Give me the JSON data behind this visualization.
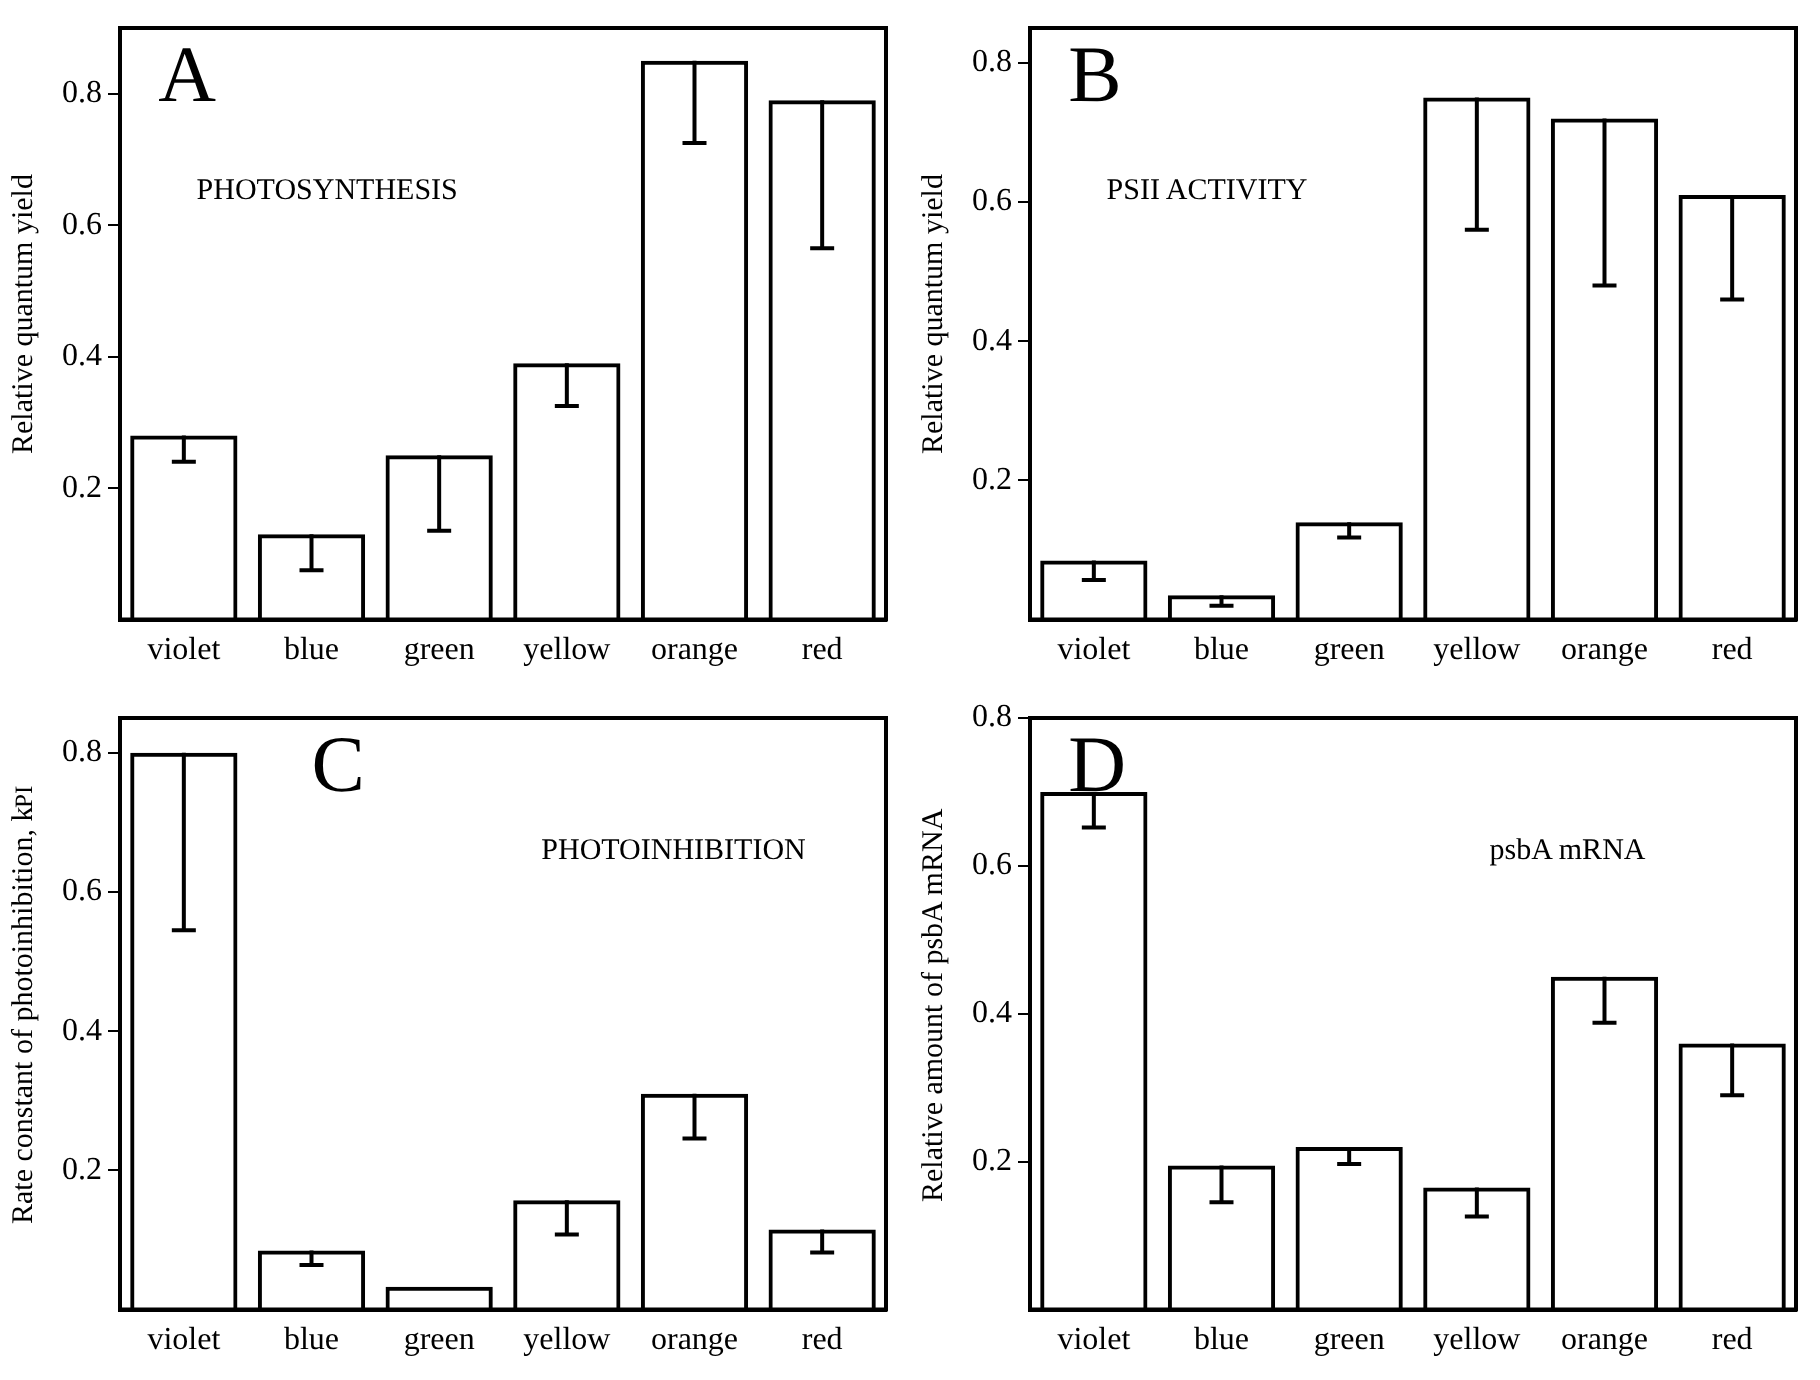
{
  "chart_data": [
    {
      "type": "bar",
      "ylabel": "Relative quantum yield",
      "annotations": [
        "A",
        "PHOTOSYNTHESIS"
      ],
      "categories": [
        "violet",
        "blue",
        "green",
        "yellow",
        "orange",
        "red"
      ],
      "color": "#000000",
      "values": [
        0.28,
        0.13,
        0.25,
        0.39,
        0.85,
        0.79
      ],
      "errors": [
        [
          0.24,
          0.28
        ],
        [
          0.075,
          0.13
        ],
        [
          0.135,
          0.25
        ],
        [
          0.325,
          0.39
        ],
        [
          0.725,
          0.85
        ],
        [
          0.565,
          0.79
        ]
      ],
      "ylim": [
        0,
        0.9
      ],
      "yticks": [
        0.2,
        0.4,
        0.6,
        0.8
      ],
      "grid": false,
      "legend": false
    },
    {
      "type": "bar",
      "ylabel": "Relative quantum yield",
      "annotations": [
        "B",
        "PSII ACTIVITY"
      ],
      "categories": [
        "violet",
        "blue",
        "green",
        "yellow",
        "orange",
        "red"
      ],
      "color": "#000000",
      "values": [
        0.085,
        0.035,
        0.14,
        0.75,
        0.72,
        0.61
      ],
      "errors": [
        [
          0.057,
          0.085
        ],
        [
          0.02,
          0.035
        ],
        [
          0.118,
          0.14
        ],
        [
          0.56,
          0.75
        ],
        [
          0.48,
          0.72
        ],
        [
          0.46,
          0.61
        ]
      ],
      "ylim": [
        0,
        0.85
      ],
      "yticks": [
        0.2,
        0.4,
        0.6,
        0.8
      ],
      "grid": false,
      "legend": false
    },
    {
      "type": "bar",
      "ylabel": "Rate constant of photoinhibition, k$_{PI}$",
      "annotations": [
        "C",
        "PHOTOINHIBITION"
      ],
      "categories": [
        "violet",
        "blue",
        "green",
        "yellow",
        "orange",
        "red"
      ],
      "color": "#000000",
      "values": [
        0.8,
        0.085,
        0.033,
        0.157,
        0.31,
        0.115
      ],
      "errors": [
        [
          0.545,
          0.8
        ],
        [
          0.064,
          0.085
        ],
        null,
        [
          0.108,
          0.157
        ],
        [
          0.246,
          0.31
        ],
        [
          0.082,
          0.115
        ]
      ],
      "ylim": [
        0,
        0.85
      ],
      "yticks": [
        0.2,
        0.4,
        0.6,
        0.8
      ],
      "grid": false,
      "legend": false
    },
    {
      "type": "bar",
      "ylabel": "Relative amount of psbA mRNA",
      "annotations": [
        "D",
        "psbA mRNA"
      ],
      "categories": [
        "violet",
        "blue",
        "green",
        "yellow",
        "orange",
        "red"
      ],
      "color": "#000000",
      "values": [
        0.7,
        0.195,
        0.22,
        0.165,
        0.45,
        0.36
      ],
      "errors": [
        [
          0.652,
          0.7
        ],
        [
          0.145,
          0.195
        ],
        [
          0.197,
          0.22
        ],
        [
          0.126,
          0.165
        ],
        [
          0.388,
          0.45
        ],
        [
          0.29,
          0.36
        ]
      ],
      "ylim": [
        0,
        0.8
      ],
      "yticks": [
        0.2,
        0.4,
        0.6,
        0.8
      ],
      "grid": false,
      "legend": false
    }
  ]
}
